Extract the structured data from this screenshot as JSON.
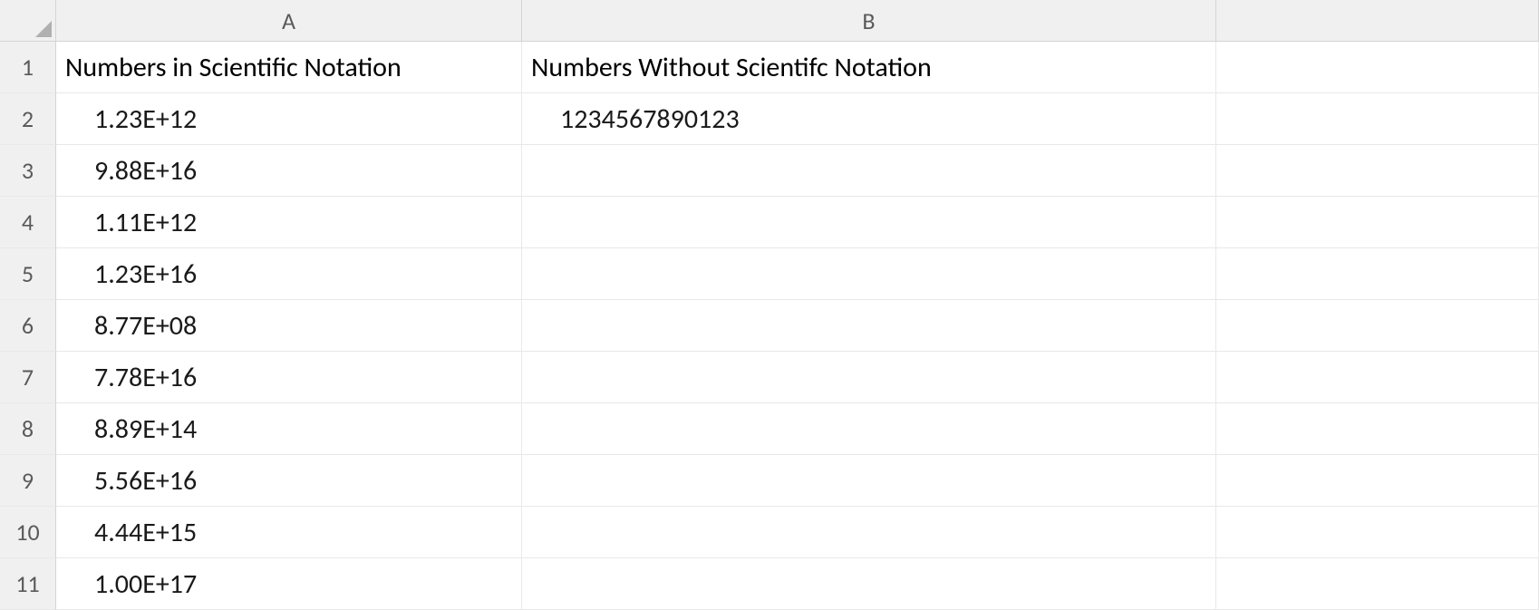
{
  "columns": {
    "corner": "",
    "A": "A",
    "B": "B",
    "C": ""
  },
  "rowNumbers": [
    "1",
    "2",
    "3",
    "4",
    "5",
    "6",
    "7",
    "8",
    "9",
    "10",
    "11"
  ],
  "headers": {
    "A": "Numbers in Scientific Notation",
    "B": "Numbers Without Scientifc Notation"
  },
  "data": {
    "A": [
      "1.23E+12",
      "9.88E+16",
      "1.11E+12",
      "1.23E+16",
      "8.77E+08",
      "7.78E+16",
      "8.89E+14",
      "5.56E+16",
      "4.44E+15",
      "1.00E+17"
    ],
    "B": [
      "1234567890123",
      "",
      "",
      "",
      "",
      "",
      "",
      "",
      "",
      ""
    ],
    "C": [
      "",
      "",
      "",
      "",
      "",
      "",
      "",
      "",
      "",
      ""
    ]
  },
  "style": {
    "background_color": "#ffffff",
    "header_bg": "#f0f0f0",
    "grid_color": "#e8e8e8",
    "header_border": "#d4d4d4",
    "text_color": "#1a1a1a",
    "header_text_color": "#5a5a5a",
    "font_family": "Calibri",
    "cell_font_size": 30,
    "header_font_size": 26,
    "col_widths": {
      "rowhdr": 62,
      "A": 514,
      "B": 766,
      "C": 356
    },
    "row_heights": {
      "header": 46,
      "body": 57
    }
  }
}
